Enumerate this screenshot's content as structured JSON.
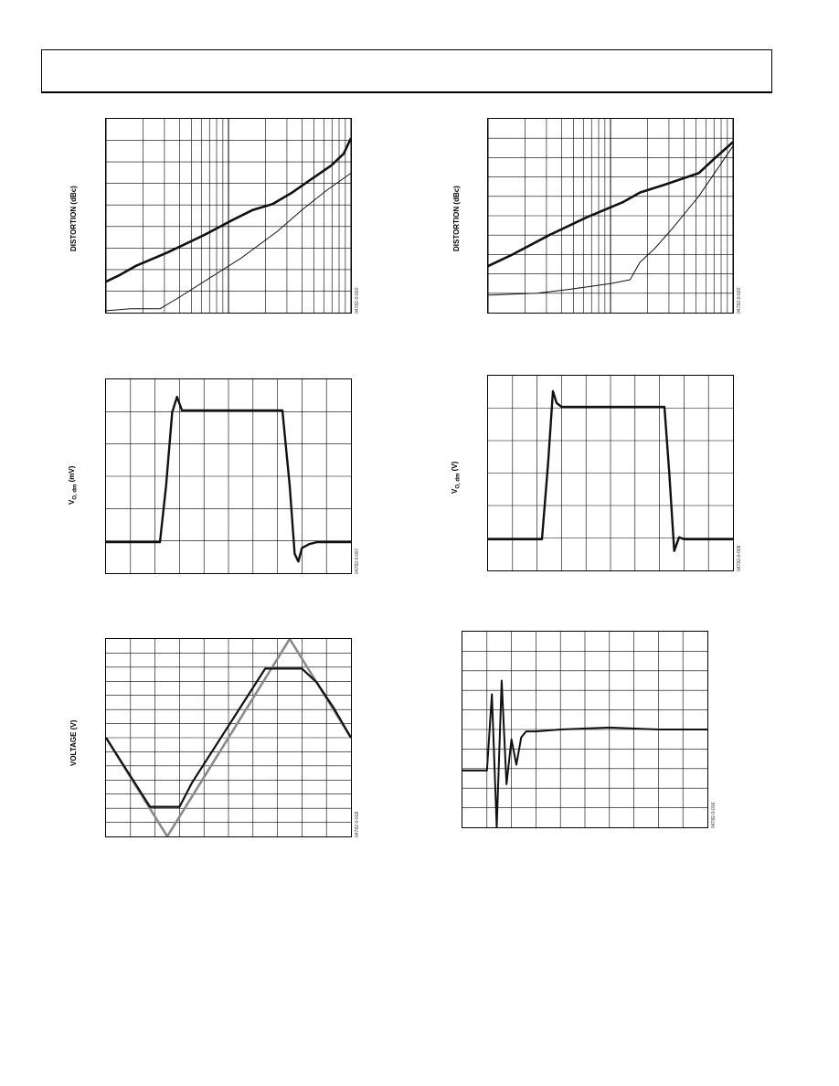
{
  "page": {
    "header": ""
  },
  "figures": [
    {
      "id": "distortion-left",
      "ylabel": "DISTORTION (dBc)",
      "code": "04782-0-020"
    },
    {
      "id": "distortion-right",
      "ylabel": "DISTORTION (dBc)",
      "code": "04782-0-020"
    },
    {
      "id": "pulse-left",
      "ylabel": "V",
      "ylabel_sub": "O, dm",
      "ylabel_unit": " (mV)",
      "code": "04782-0-007"
    },
    {
      "id": "pulse-right",
      "ylabel": "V",
      "ylabel_sub": "O, dm",
      "ylabel_unit": " (V)",
      "code": "04782-0-008"
    },
    {
      "id": "overdrive",
      "ylabel": "VOLTAGE (V)",
      "code": "04782-0-018"
    },
    {
      "id": "settling",
      "ylabel": "",
      "code": "04782-0-016"
    }
  ],
  "chart_data": [
    {
      "type": "line",
      "title": "",
      "xlabel": "",
      "ylabel": "DISTORTION (dBc)",
      "xscale": "log",
      "grid": true,
      "series": [
        {
          "name": "",
          "x": [
            0,
            0.05,
            0.12,
            0.25,
            0.4,
            0.52,
            0.6,
            0.68,
            0.76,
            0.84,
            0.92,
            0.97,
            1
          ],
          "y": [
            0.16,
            0.19,
            0.24,
            0.31,
            0.4,
            0.48,
            0.53,
            0.56,
            0.62,
            0.69,
            0.76,
            0.82,
            0.9
          ]
        },
        {
          "name": "",
          "x": [
            0,
            0.1,
            0.22,
            0.3,
            0.4,
            0.55,
            0.7,
            0.8,
            0.9,
            1
          ],
          "y": [
            0.01,
            0.02,
            0.02,
            0.08,
            0.16,
            0.28,
            0.42,
            0.53,
            0.63,
            0.72
          ]
        }
      ]
    },
    {
      "type": "line",
      "title": "",
      "xlabel": "",
      "ylabel": "DISTORTION (dBc)",
      "xscale": "log",
      "grid": true,
      "series": [
        {
          "name": "",
          "x": [
            0,
            0.1,
            0.25,
            0.4,
            0.55,
            0.62,
            0.72,
            0.86,
            0.92,
            1
          ],
          "y": [
            0.24,
            0.3,
            0.4,
            0.49,
            0.57,
            0.62,
            0.66,
            0.72,
            0.79,
            0.88
          ]
        },
        {
          "name": "",
          "x": [
            0,
            0.2,
            0.33,
            0.5,
            0.58,
            0.62,
            0.68,
            0.75,
            0.86,
            1
          ],
          "y": [
            0.09,
            0.1,
            0.12,
            0.15,
            0.17,
            0.26,
            0.33,
            0.43,
            0.6,
            0.86
          ]
        }
      ]
    },
    {
      "type": "line",
      "title": "",
      "xlabel": "",
      "ylabel": "V O, dm (mV)",
      "grid": true,
      "series": [
        {
          "name": "",
          "x": [
            0,
            0.22,
            0.245,
            0.27,
            0.29,
            0.31,
            0.33,
            0.5,
            0.72,
            0.75,
            0.77,
            0.785,
            0.8,
            0.83,
            0.86,
            1
          ],
          "y": [
            0.16,
            0.16,
            0.45,
            0.83,
            0.91,
            0.84,
            0.84,
            0.84,
            0.84,
            0.45,
            0.1,
            0.06,
            0.13,
            0.15,
            0.16,
            0.16
          ]
        }
      ]
    },
    {
      "type": "line",
      "title": "",
      "xlabel": "",
      "ylabel": "V O, dm (V)",
      "grid": true,
      "series": [
        {
          "name": "",
          "x": [
            0,
            0.22,
            0.245,
            0.265,
            0.28,
            0.3,
            0.33,
            0.5,
            0.72,
            0.74,
            0.76,
            0.78,
            0.8,
            0.84,
            1
          ],
          "y": [
            0.16,
            0.16,
            0.55,
            0.92,
            0.86,
            0.84,
            0.84,
            0.84,
            0.84,
            0.5,
            0.1,
            0.17,
            0.16,
            0.16,
            0.16
          ]
        }
      ]
    },
    {
      "type": "line",
      "title": "",
      "xlabel": "",
      "ylabel": "VOLTAGE (V)",
      "grid": true,
      "series": [
        {
          "name": "",
          "x": [
            0,
            0.25,
            0.75,
            1
          ],
          "y": [
            0.5,
            0,
            1,
            0.5
          ]
        },
        {
          "name": "",
          "x": [
            0,
            0.18,
            0.3,
            0.35,
            0.65,
            0.8,
            0.86,
            0.93,
            1
          ],
          "y": [
            0.5,
            0.15,
            0.15,
            0.27,
            0.85,
            0.85,
            0.78,
            0.65,
            0.5
          ]
        }
      ]
    },
    {
      "type": "line",
      "title": "",
      "xlabel": "",
      "ylabel": "",
      "grid": true,
      "series": [
        {
          "name": "",
          "x": [
            0,
            0.1,
            0.12,
            0.14,
            0.16,
            0.18,
            0.2,
            0.22,
            0.24,
            0.26,
            0.3,
            0.4,
            0.6,
            0.8,
            1
          ],
          "y": [
            0.29,
            0.29,
            0.68,
            0.0,
            0.75,
            0.22,
            0.45,
            0.32,
            0.46,
            0.49,
            0.49,
            0.5,
            0.51,
            0.5,
            0.5
          ]
        }
      ]
    }
  ]
}
